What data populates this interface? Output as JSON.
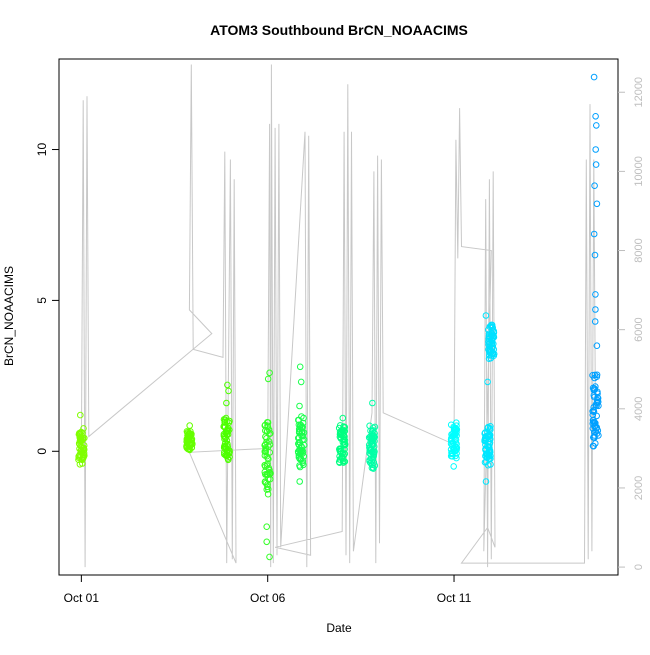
{
  "chart_data": {
    "type": "scatter",
    "title": "ATOM3 Southbound BrCN_NOAACIMS",
    "xlabel": "Date",
    "ylabel": "BrCN_NOAACIMS",
    "x_ticks": [
      "Oct 01",
      "Oct 06",
      "Oct 11"
    ],
    "y_ticks_left": [
      "0",
      "5",
      "10"
    ],
    "y_ticks_right": [
      "0",
      "2000",
      "4000",
      "6000",
      "8000",
      "10000",
      "12000"
    ],
    "xlim_days_oct": [
      0.4,
      15.4
    ],
    "ylim_left": [
      -4.1,
      13.0
    ],
    "ylim_right": [
      -200,
      12840
    ],
    "y_right_quantity": "altitude",
    "right_axis_color": "#bebebe",
    "altitude_line_color": "#c8c8c8",
    "point_style": "open-circle",
    "series": [
      {
        "day": 1.0,
        "y_min": -0.5,
        "y_max": 0.8,
        "outliers": [
          1.2
        ],
        "color": "#80ff00"
      },
      {
        "day": 3.9,
        "y_min": 0.0,
        "y_max": 0.7,
        "outliers": [
          0.85
        ],
        "color": "#66ff00"
      },
      {
        "day": 4.9,
        "y_min": -0.4,
        "y_max": 1.3,
        "outliers": [
          1.6,
          2.2,
          2.0
        ],
        "color": "#4dff00"
      },
      {
        "day": 6.0,
        "y_min": -1.6,
        "y_max": 1.2,
        "outliers": [
          2.6,
          2.4,
          -2.5,
          -3.0,
          -3.5
        ],
        "color": "#33ff26"
      },
      {
        "day": 6.9,
        "y_min": -0.6,
        "y_max": 1.2,
        "outliers": [
          2.8,
          2.3,
          1.5,
          -1.0
        ],
        "color": "#1aff4d"
      },
      {
        "day": 8.0,
        "y_min": -0.5,
        "y_max": 1.0,
        "outliers": [
          1.1
        ],
        "color": "#00ff80"
      },
      {
        "day": 8.8,
        "y_min": -0.6,
        "y_max": 0.9,
        "outliers": [
          1.6
        ],
        "color": "#00ffa6"
      },
      {
        "day": 11.0,
        "y_min": -0.3,
        "y_max": 1.0,
        "outliers": [
          -0.5
        ],
        "color": "#00ffff"
      },
      {
        "day": 11.9,
        "y_min": -0.5,
        "y_max": 0.9,
        "outliers": [
          2.3,
          4.5,
          -1.0
        ],
        "color": "#00e6ff"
      },
      {
        "day": 12.0,
        "y_min": 3.0,
        "y_max": 4.2,
        "outliers": [],
        "color": "#00e0ff"
      },
      {
        "day": 14.8,
        "y_min": 0.0,
        "y_max": 2.6,
        "outliers": [
          12.4,
          11.1,
          10.8,
          10.0,
          9.5,
          8.8,
          8.2,
          7.2,
          6.5,
          5.2,
          4.7,
          4.3,
          3.5
        ],
        "color": "#00a0ff"
      }
    ],
    "altitude_profile": [
      {
        "day": 1.0,
        "alt": 2900
      },
      {
        "day": 1.05,
        "alt": 11800
      },
      {
        "day": 1.1,
        "alt": 0
      },
      {
        "day": 1.15,
        "alt": 11900
      },
      {
        "day": 1.2,
        "alt": 3300
      },
      {
        "day": 4.5,
        "alt": 5900
      },
      {
        "day": 3.9,
        "alt": 6500
      },
      {
        "day": 3.95,
        "alt": 12700
      },
      {
        "day": 4.0,
        "alt": 5500
      },
      {
        "day": 4.8,
        "alt": 5300
      },
      {
        "day": 4.85,
        "alt": 10500
      },
      {
        "day": 4.9,
        "alt": 100
      },
      {
        "day": 5.0,
        "alt": 10300
      },
      {
        "day": 5.05,
        "alt": 200
      },
      {
        "day": 5.1,
        "alt": 9800
      },
      {
        "day": 5.15,
        "alt": 100
      },
      {
        "day": 3.9,
        "alt": 2900
      },
      {
        "day": 6.0,
        "alt": 3000
      },
      {
        "day": 6.05,
        "alt": 11200
      },
      {
        "day": 6.08,
        "alt": 0
      },
      {
        "day": 6.1,
        "alt": 12700
      },
      {
        "day": 6.15,
        "alt": 100
      },
      {
        "day": 6.2,
        "alt": 11100
      },
      {
        "day": 6.25,
        "alt": 300
      },
      {
        "day": 6.3,
        "alt": 11200
      },
      {
        "day": 6.35,
        "alt": 500
      },
      {
        "day": 7.0,
        "alt": 11000
      },
      {
        "day": 7.05,
        "alt": 0
      },
      {
        "day": 7.1,
        "alt": 10900
      },
      {
        "day": 7.15,
        "alt": 300
      },
      {
        "day": 6.2,
        "alt": 500
      },
      {
        "day": 8.0,
        "alt": 900
      },
      {
        "day": 8.05,
        "alt": 11000
      },
      {
        "day": 8.1,
        "alt": 300
      },
      {
        "day": 8.15,
        "alt": 12200
      },
      {
        "day": 8.2,
        "alt": 100
      },
      {
        "day": 8.25,
        "alt": 11000
      },
      {
        "day": 8.3,
        "alt": 400
      },
      {
        "day": 8.8,
        "alt": 3900
      },
      {
        "day": 8.85,
        "alt": 10000
      },
      {
        "day": 8.9,
        "alt": 100
      },
      {
        "day": 8.95,
        "alt": 10400
      },
      {
        "day": 9.0,
        "alt": 600
      },
      {
        "day": 9.05,
        "alt": 10300
      },
      {
        "day": 9.1,
        "alt": 3900
      },
      {
        "day": 11.0,
        "alt": 3100
      },
      {
        "day": 11.05,
        "alt": 10800
      },
      {
        "day": 11.1,
        "alt": 7800
      },
      {
        "day": 11.15,
        "alt": 11600
      },
      {
        "day": 11.2,
        "alt": 8100
      },
      {
        "day": 12.0,
        "alt": 8000
      },
      {
        "day": 11.8,
        "alt": 400
      },
      {
        "day": 11.85,
        "alt": 9300
      },
      {
        "day": 11.9,
        "alt": 0
      },
      {
        "day": 11.95,
        "alt": 9800
      },
      {
        "day": 12.0,
        "alt": 200
      },
      {
        "day": 12.05,
        "alt": 10000
      },
      {
        "day": 12.1,
        "alt": 500
      },
      {
        "day": 11.9,
        "alt": 1000
      },
      {
        "day": 11.2,
        "alt": 100
      },
      {
        "day": 14.5,
        "alt": 100
      },
      {
        "day": 14.55,
        "alt": 10300
      },
      {
        "day": 14.6,
        "alt": 200
      },
      {
        "day": 14.65,
        "alt": 11700
      },
      {
        "day": 14.7,
        "alt": 400
      },
      {
        "day": 14.75,
        "alt": 10300
      },
      {
        "day": 14.8,
        "alt": 3300
      }
    ]
  }
}
